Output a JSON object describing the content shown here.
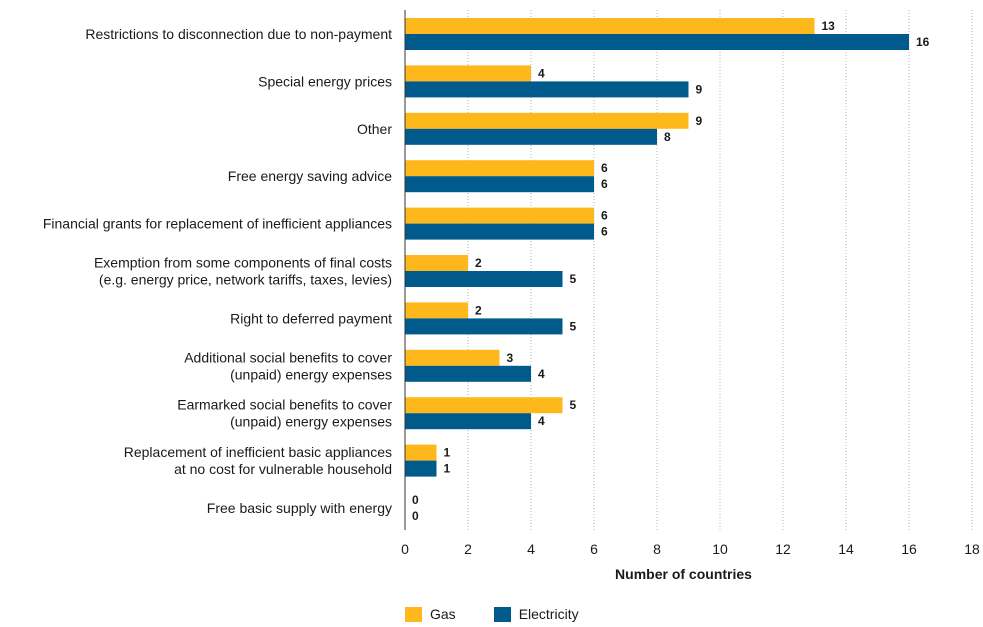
{
  "chart_data": {
    "type": "bar",
    "orientation": "horizontal",
    "categories": [
      [
        "Restrictions to disconnection due to non-payment"
      ],
      [
        "Special energy prices"
      ],
      [
        "Other"
      ],
      [
        "Free energy saving advice"
      ],
      [
        "Financial grants for replacement of inefficient appliances"
      ],
      [
        "Exemption from some components of final costs",
        "(e.g. energy price, network tariffs, taxes, levies)"
      ],
      [
        "Right to deferred payment"
      ],
      [
        "Additional social benefits to cover",
        "(unpaid) energy expenses"
      ],
      [
        "Earmarked social benefits to cover",
        "(unpaid) energy expenses"
      ],
      [
        "Replacement of inefficient basic appliances",
        "at no cost for vulnerable household"
      ],
      [
        "Free basic supply with energy"
      ]
    ],
    "series": [
      {
        "name": "Gas",
        "color": "#FFB81C",
        "values": [
          13,
          4,
          9,
          6,
          6,
          2,
          2,
          3,
          5,
          1,
          0
        ]
      },
      {
        "name": "Electricity",
        "color": "#005A8C",
        "values": [
          16,
          9,
          8,
          6,
          6,
          5,
          5,
          4,
          4,
          1,
          0
        ]
      }
    ],
    "xlabel": "Number of countries",
    "xlim": [
      0,
      18
    ],
    "xticks": [
      "0",
      "2",
      "4",
      "6",
      "8",
      "10",
      "12",
      "14",
      "16",
      "18"
    ],
    "grid": "vertical-dotted",
    "legend_position": "bottom"
  }
}
